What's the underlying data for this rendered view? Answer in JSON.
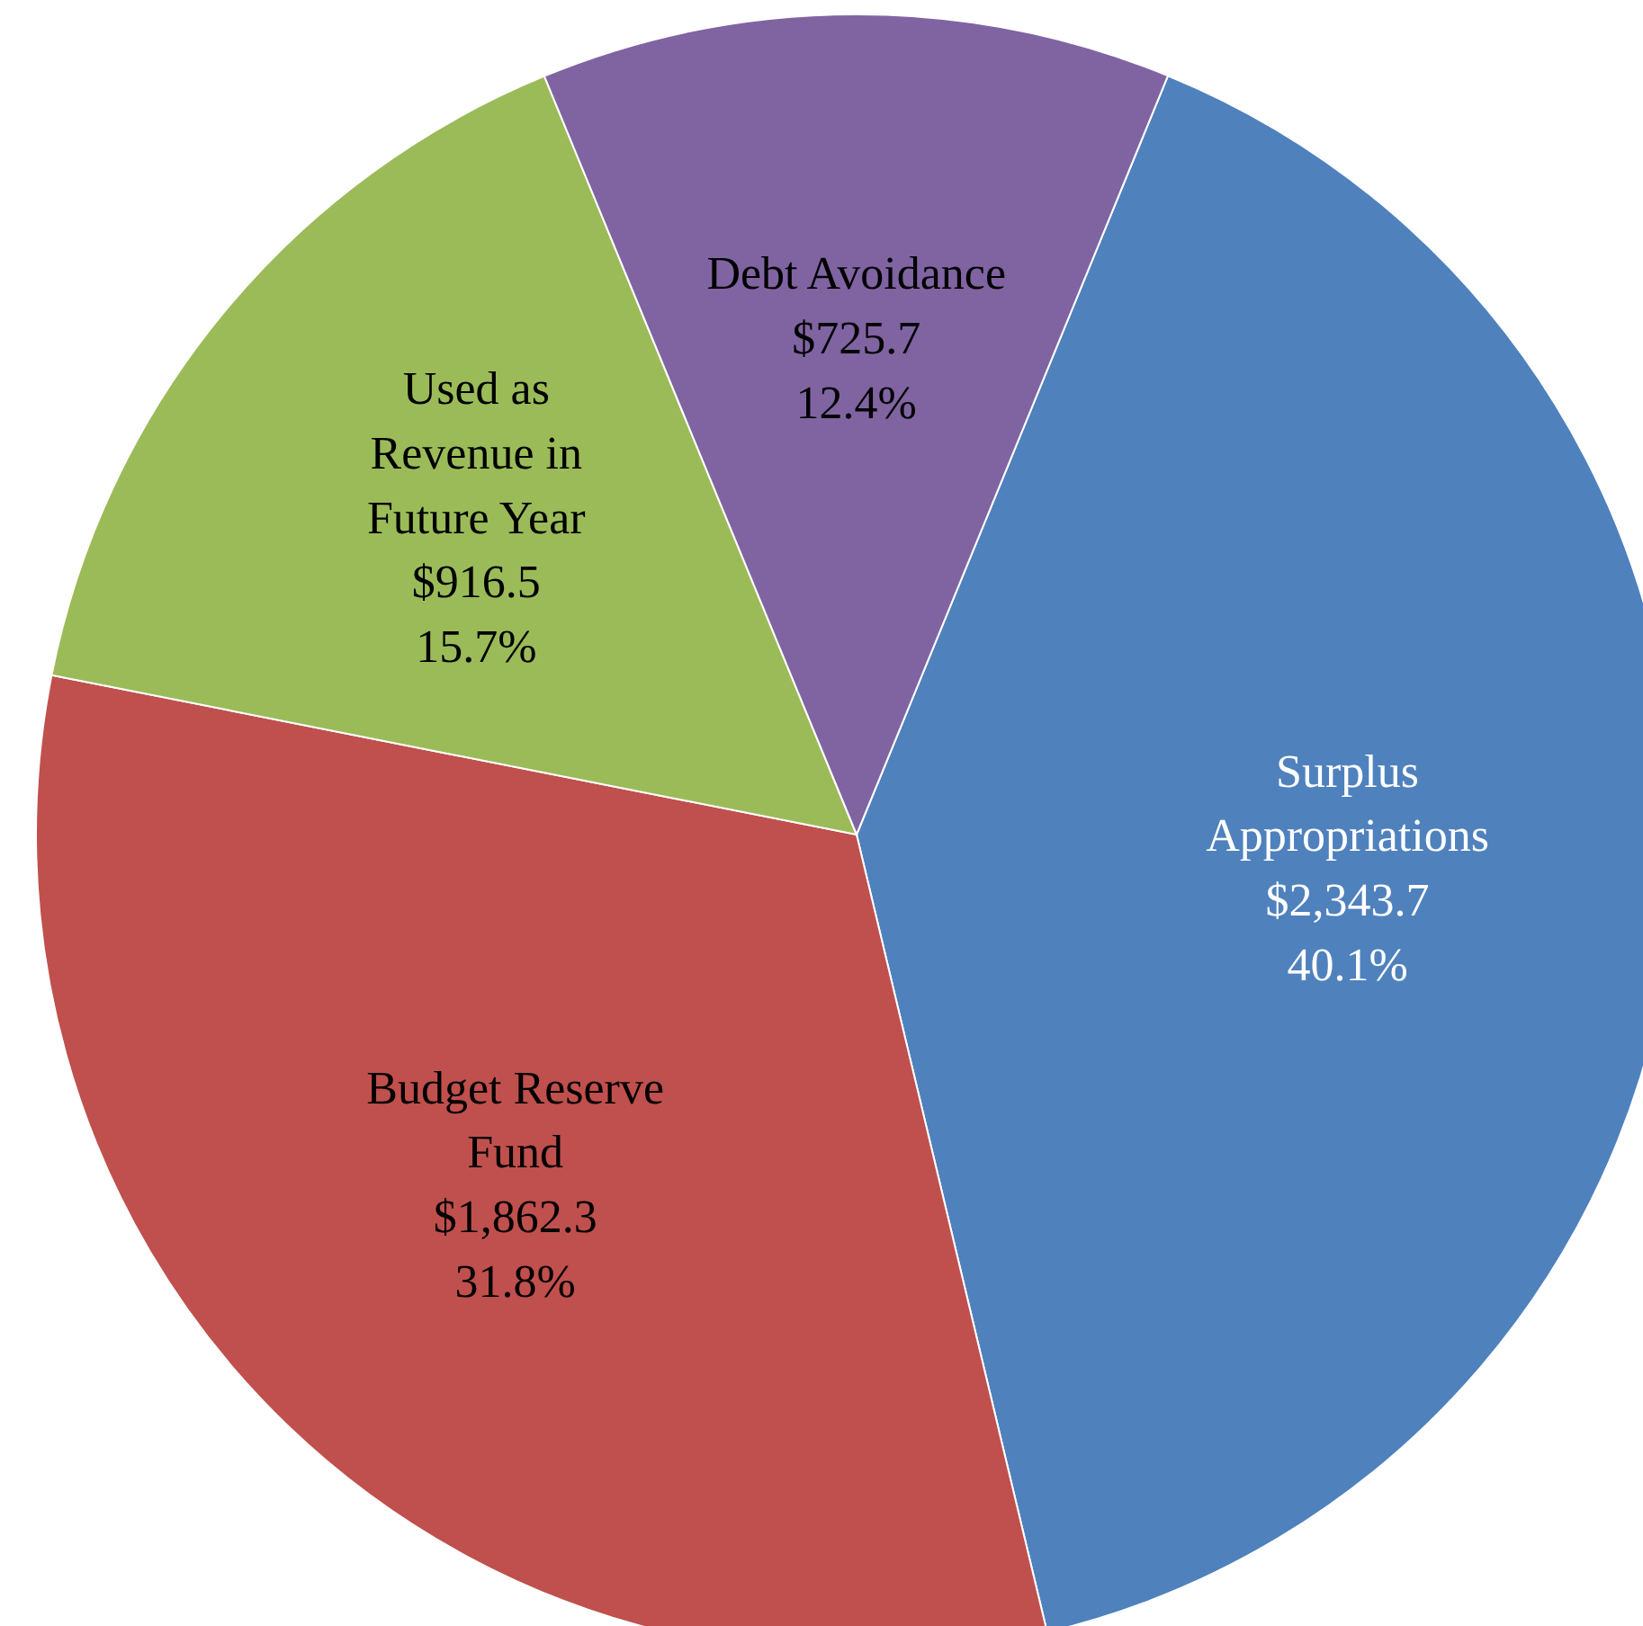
{
  "chart_data": {
    "type": "pie",
    "categories": [
      "Surplus Appropriations",
      "Budget Reserve Fund",
      "Used as Revenue in Future Year",
      "Debt Avoidance"
    ],
    "values": [
      2343.7,
      1862.3,
      916.5,
      725.7
    ],
    "colors": [
      "#4f81bd",
      "#c0504d",
      "#9bbb59",
      "#8064a2"
    ],
    "value_labels": [
      "$2,343.7\n40.1%",
      "$1,862.3\n31.8%",
      "$916.5\n15.7%",
      "$725.7\n12.4%"
    ]
  }
}
